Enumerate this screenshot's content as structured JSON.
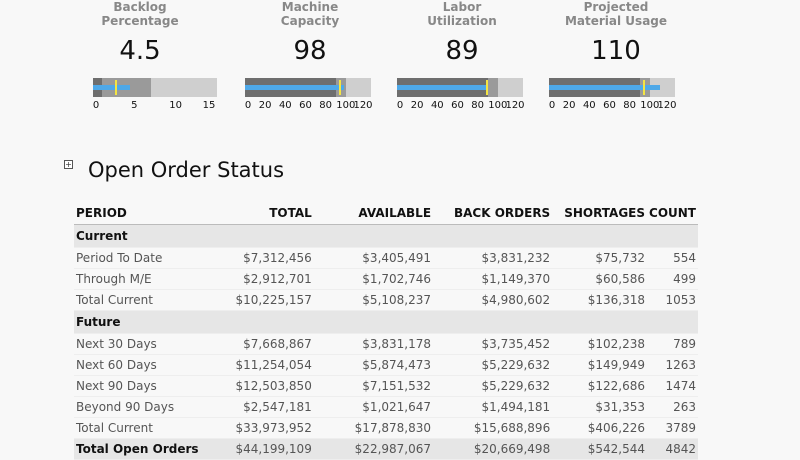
{
  "kpis": [
    {
      "title_line1": "Backlog",
      "title_line2": "Percentage",
      "value": "4.5",
      "ticks": [
        "0",
        "5",
        "10",
        "15"
      ],
      "max": 15,
      "ranges": [
        1.1,
        7,
        15
      ],
      "actual": 4.5,
      "target": 2.8
    },
    {
      "title_line1": "Machine",
      "title_line2": "Capacity",
      "value": "98",
      "ticks": [
        "0",
        "20",
        "40",
        "60",
        "80",
        "100",
        "120"
      ],
      "max": 125,
      "ranges": [
        90,
        100,
        125
      ],
      "actual": 98,
      "target": 94
    },
    {
      "title_line1": "Labor",
      "title_line2": "Utilization",
      "value": "89",
      "ticks": [
        "0",
        "20",
        "40",
        "60",
        "80",
        "100",
        "120"
      ],
      "max": 125,
      "ranges": [
        90,
        100,
        125
      ],
      "actual": 89,
      "target": 89
    },
    {
      "title_line1": "Projected",
      "title_line2": "Material Usage",
      "value": "110",
      "ticks": [
        "0",
        "20",
        "40",
        "60",
        "80",
        "100",
        "120"
      ],
      "max": 125,
      "ranges": [
        90,
        100,
        125
      ],
      "actual": 110,
      "target": 94
    }
  ],
  "colors": {
    "band_dark": "#6e6e6e",
    "band_mid": "#9a9a9a",
    "band_light": "#cfcfcf",
    "bar": "#4ea8e8",
    "target": "#f4e542"
  },
  "section": {
    "expander": "+",
    "title": "Open Order Status"
  },
  "table": {
    "headers": [
      "PERIOD",
      "TOTAL",
      "AVAILABLE",
      "BACK ORDERS",
      "SHORTAGES",
      "COUNT"
    ],
    "rows": [
      {
        "type": "group",
        "label": "Current"
      },
      {
        "type": "row",
        "cells": [
          "Period To Date",
          "$7,312,456",
          "$3,405,491",
          "$3,831,232",
          "$75,732",
          "554"
        ]
      },
      {
        "type": "row",
        "cells": [
          "Through M/E",
          "$2,912,701",
          "$1,702,746",
          "$1,149,370",
          "$60,586",
          "499"
        ]
      },
      {
        "type": "row",
        "cells": [
          "Total Current",
          "$10,225,157",
          "$5,108,237",
          "$4,980,602",
          "$136,318",
          "1053"
        ]
      },
      {
        "type": "group",
        "label": "Future"
      },
      {
        "type": "row",
        "cells": [
          "Next 30 Days",
          "$7,668,867",
          "$3,831,178",
          "$3,735,452",
          "$102,238",
          "789"
        ]
      },
      {
        "type": "row",
        "cells": [
          "Next 60 Days",
          "$11,254,054",
          "$5,874,473",
          "$5,229,632",
          "$149,949",
          "1263"
        ]
      },
      {
        "type": "row",
        "cells": [
          "Next 90 Days",
          "$12,503,850",
          "$7,151,532",
          "$5,229,632",
          "$122,686",
          "1474"
        ]
      },
      {
        "type": "row",
        "cells": [
          "Beyond 90 Days",
          "$2,547,181",
          "$1,021,647",
          "$1,494,181",
          "$31,353",
          "263"
        ]
      },
      {
        "type": "row",
        "cells": [
          "Total Current",
          "$33,973,952",
          "$17,878,830",
          "$15,688,896",
          "$406,226",
          "3789"
        ]
      },
      {
        "type": "grand",
        "cells": [
          "Total Open Orders",
          "$44,199,109",
          "$22,987,067",
          "$20,669,498",
          "$542,544",
          "4842"
        ]
      }
    ]
  }
}
